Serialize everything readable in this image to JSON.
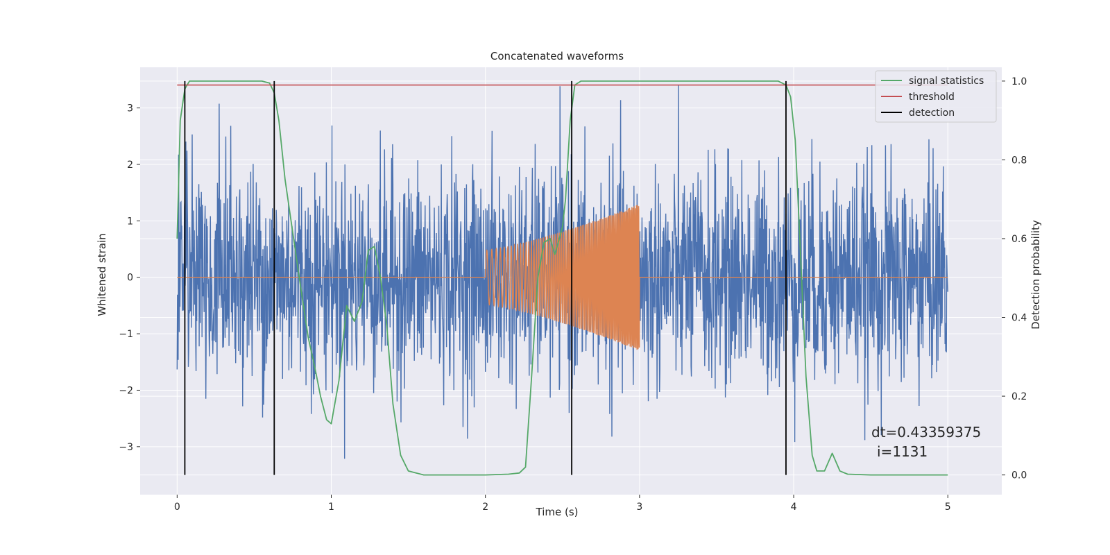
{
  "chart_data": {
    "type": "line",
    "title": "Concatenated waveforms",
    "xlabel": "Time (s)",
    "ylabel_left": "Whitened strain",
    "ylabel_right": "Detection probability",
    "xlim": [
      -0.24,
      5.35
    ],
    "ylim_left": [
      -3.85,
      3.72
    ],
    "ylim_right": [
      -0.05,
      1.035
    ],
    "xticks": [
      0,
      1,
      2,
      3,
      4,
      5
    ],
    "yticks_left": [
      -3,
      -2,
      -1,
      0,
      1,
      2,
      3
    ],
    "yticks_right": [
      0.0,
      0.2,
      0.4,
      0.6,
      0.8,
      1.0
    ],
    "xtick_labels": [
      "0",
      "1",
      "2",
      "3",
      "4",
      "5"
    ],
    "ytick_labels_left": [
      "−3",
      "−2",
      "−1",
      "0",
      "1",
      "2",
      "3"
    ],
    "ytick_labels_right": [
      "0.0",
      "0.2",
      "0.4",
      "0.6",
      "0.8",
      "1.0"
    ],
    "grid": true,
    "legend_position": "top-right",
    "legend": [
      "signal statistics",
      "threshold",
      "detection"
    ],
    "colors": {
      "noise": "#4c72b0",
      "waveform": "#dd8452",
      "signal_statistics": "#55a868",
      "threshold": "#c44e52",
      "detection": "#000000",
      "axes_bg": "#eaeaf2",
      "grid": "#ffffff"
    },
    "series": [
      {
        "name": "signal statistics",
        "axis": "right",
        "x": [
          0.0,
          0.02,
          0.05,
          0.08,
          0.1,
          0.3,
          0.55,
          0.6,
          0.63,
          0.66,
          0.7,
          0.8,
          0.85,
          0.9,
          0.93,
          0.97,
          1.0,
          1.05,
          1.1,
          1.15,
          1.2,
          1.24,
          1.28,
          1.32,
          1.36,
          1.4,
          1.45,
          1.5,
          1.6,
          1.8,
          2.0,
          2.15,
          2.22,
          2.26,
          2.3,
          2.34,
          2.38,
          2.42,
          2.45,
          2.48,
          2.5,
          2.52,
          2.55,
          2.58,
          2.62,
          3.0,
          3.5,
          3.9,
          3.95,
          3.98,
          4.01,
          4.04,
          4.08,
          4.12,
          4.15,
          4.2,
          4.25,
          4.3,
          4.35,
          4.5,
          4.8,
          5.0
        ],
        "y": [
          0.6,
          0.9,
          0.98,
          1.0,
          1.0,
          1.0,
          1.0,
          0.995,
          0.97,
          0.9,
          0.75,
          0.48,
          0.35,
          0.26,
          0.2,
          0.14,
          0.13,
          0.24,
          0.43,
          0.39,
          0.44,
          0.57,
          0.58,
          0.5,
          0.38,
          0.18,
          0.05,
          0.01,
          0.0,
          0.0,
          0.0,
          0.002,
          0.005,
          0.02,
          0.25,
          0.5,
          0.59,
          0.6,
          0.56,
          0.6,
          0.63,
          0.7,
          0.9,
          0.99,
          1.0,
          1.0,
          1.0,
          1.0,
          0.99,
          0.96,
          0.85,
          0.6,
          0.25,
          0.05,
          0.01,
          0.01,
          0.055,
          0.01,
          0.002,
          0.0,
          0.0,
          0.0
        ]
      },
      {
        "name": "threshold",
        "axis": "right",
        "x": [
          0.0,
          5.0
        ],
        "y": [
          0.99,
          0.99
        ]
      },
      {
        "name": "detection",
        "axis": "right",
        "x": [
          0.05,
          0.63,
          2.56,
          3.95
        ],
        "y_range": [
          0.0,
          1.0
        ]
      },
      {
        "axis": "left",
        "x_range": [
          0.0,
          5.0
        ],
        "amplitude_range": [
          -3.5,
          3.4
        ]
      },
      {
        "axis": "left",
        "x_range": [
          2.0,
          3.0
        ],
        "envelope_start": 0.48,
        "envelope_end": 1.3
      }
    ],
    "annotation": [
      "dt=0.43359375",
      "i=1131"
    ]
  }
}
